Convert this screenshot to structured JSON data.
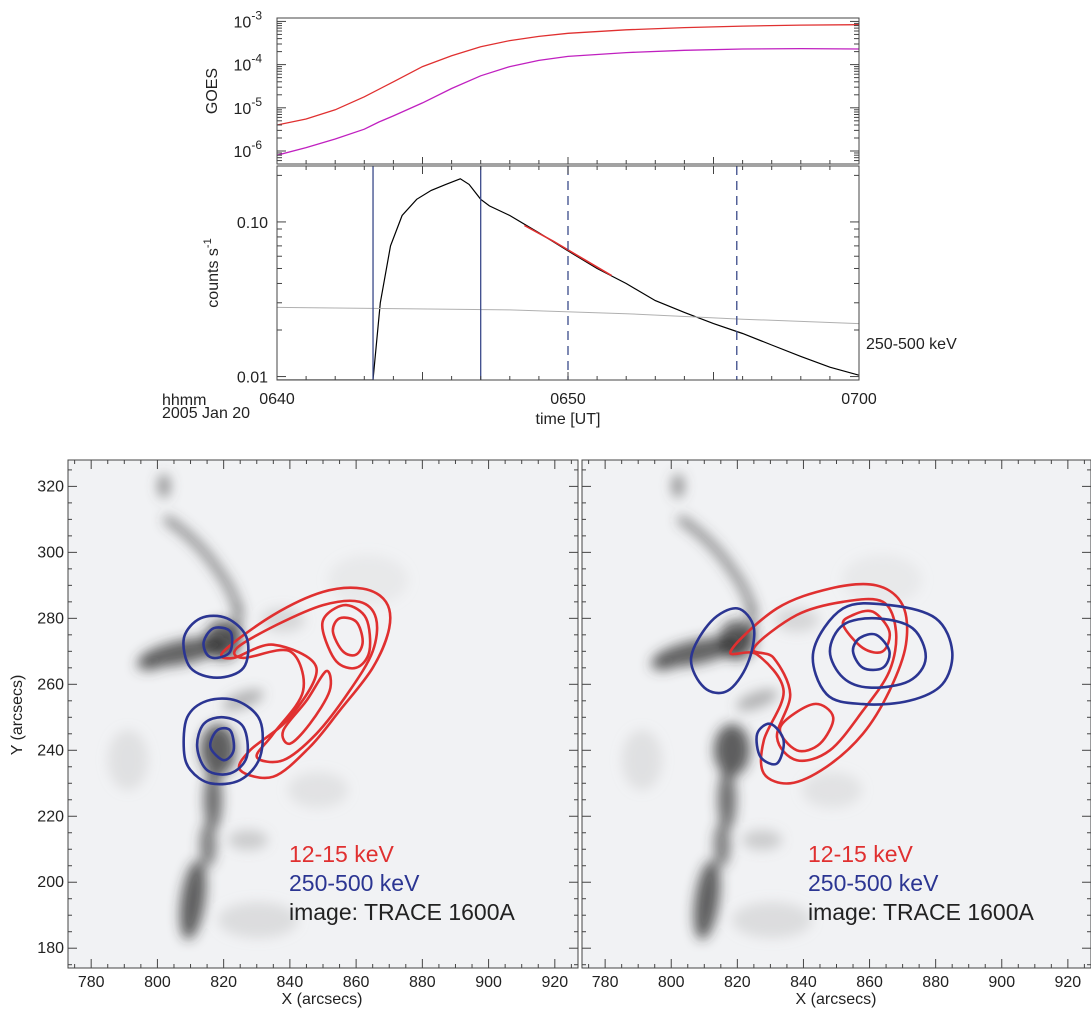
{
  "chart_data": [
    {
      "type": "line",
      "panel": "goes",
      "ylabel": "GOES",
      "yscale": "log",
      "ylim": [
        5e-07,
        0.0012
      ],
      "xlim": [
        40,
        60
      ],
      "yticks": [
        {
          "value": 0.001,
          "mant": "10",
          "exp": "-3"
        },
        {
          "value": 0.0001,
          "mant": "10",
          "exp": "-4"
        },
        {
          "value": 1e-05,
          "mant": "10",
          "exp": "-5"
        },
        {
          "value": 1e-06,
          "mant": "10",
          "exp": "-6"
        }
      ],
      "series": [
        {
          "color": "#e03030",
          "x": [
            40,
            41,
            42,
            43,
            44,
            45,
            46,
            47,
            48,
            49,
            50,
            52,
            54,
            56,
            58,
            60
          ],
          "y": [
            4e-06,
            5.5e-06,
            9e-06,
            1.8e-05,
            4e-05,
            9e-05,
            0.00016,
            0.00026,
            0.00036,
            0.00045,
            0.00053,
            0.00064,
            0.00072,
            0.00078,
            0.00082,
            0.00084
          ]
        },
        {
          "color": "#c020c0",
          "x": [
            40,
            41,
            42,
            43,
            43.5,
            44,
            45,
            46,
            47,
            48,
            49,
            50,
            52,
            54,
            56,
            58,
            60
          ],
          "y": [
            8e-07,
            1.2e-06,
            1.9e-06,
            3.2e-06,
            4.7e-06,
            6.5e-06,
            1.3e-05,
            2.8e-05,
            5.5e-05,
            9e-05,
            0.000125,
            0.000155,
            0.00019,
            0.000215,
            0.00023,
            0.000235,
            0.00023
          ]
        }
      ]
    },
    {
      "type": "line",
      "panel": "counts",
      "ylabel_main": "counts s",
      "ylabel_sup": "-1",
      "yscale": "log",
      "ylim": [
        0.0095,
        0.23
      ],
      "xlim": [
        40,
        60
      ],
      "yticks": [
        {
          "value": 0.1,
          "label": "0.10"
        },
        {
          "value": 0.01,
          "label": "0.01"
        }
      ],
      "xticks": [
        {
          "value": 40,
          "label": "0640"
        },
        {
          "value": 50,
          "label": "0650"
        },
        {
          "value": 60,
          "label": "0700"
        }
      ],
      "xlabel": "time [UT]",
      "time_format_label": "hhmm",
      "date_label": "2005 Jan 20",
      "band_label": "250-500 keV",
      "solid_lines_x": [
        43.3,
        47.0
      ],
      "dashed_lines_x": [
        50.0,
        55.8
      ],
      "line_color": "#3a4a8a",
      "series": [
        {
          "role": "signal",
          "color": "#000000",
          "x": [
            40,
            43.3,
            43.55,
            43.9,
            44.3,
            44.8,
            45.3,
            45.8,
            46.3,
            46.6,
            47.0,
            47.3,
            48,
            49,
            50,
            51,
            52,
            53,
            54,
            55,
            56,
            57,
            58,
            59,
            60
          ],
          "y": [
            0.0095,
            0.0095,
            0.03,
            0.07,
            0.11,
            0.14,
            0.16,
            0.175,
            0.19,
            0.175,
            0.14,
            0.127,
            0.11,
            0.085,
            0.065,
            0.05,
            0.04,
            0.031,
            0.026,
            0.022,
            0.019,
            0.016,
            0.0135,
            0.0115,
            0.0102
          ]
        },
        {
          "role": "fit",
          "color": "#e03030",
          "x": [
            48.5,
            49.5,
            50.5,
            51.5
          ],
          "y": [
            0.095,
            0.075,
            0.058,
            0.045
          ]
        },
        {
          "role": "background",
          "color": "#b0b0b0",
          "x": [
            40,
            44,
            48,
            52,
            56,
            60
          ],
          "y": [
            0.028,
            0.0275,
            0.027,
            0.0255,
            0.0235,
            0.022
          ]
        }
      ]
    },
    {
      "type": "contour",
      "panel": "map-left",
      "xlabel": "X (arcsecs)",
      "ylabel": "Y (arcsecs)",
      "xlim": [
        773,
        927
      ],
      "ylim": [
        174,
        328
      ],
      "xticks": [
        780,
        800,
        820,
        840,
        860,
        880,
        900,
        920
      ],
      "yticks": [
        180,
        200,
        220,
        240,
        260,
        280,
        300,
        320
      ],
      "legend": [
        {
          "text": "12-15 keV",
          "color": "#e03030"
        },
        {
          "text": "250-500 keV",
          "color": "#2b3592"
        },
        {
          "text": "image: TRACE 1600A",
          "color": "#222222"
        }
      ],
      "contours": [
        {
          "color": "#e03030",
          "points": [
            [
              820,
              270
            ],
            [
              835,
              281
            ],
            [
              850,
              288
            ],
            [
              862,
              289
            ],
            [
              869,
              285
            ],
            [
              870,
              277
            ],
            [
              865,
              265
            ],
            [
              855,
              252
            ],
            [
              846,
              241
            ],
            [
              835,
              232
            ],
            [
              825,
              234
            ],
            [
              828,
              240
            ],
            [
              840,
              250
            ],
            [
              848,
              265
            ],
            [
              835,
              272
            ],
            [
              823,
              268
            ]
          ]
        },
        {
          "color": "#e03030",
          "points": [
            [
              824,
              271
            ],
            [
              836,
              278
            ],
            [
              850,
              284
            ],
            [
              861,
              285
            ],
            [
              866,
              280
            ],
            [
              865,
              270
            ],
            [
              858,
              258
            ],
            [
              848,
              245
            ],
            [
              838,
              237
            ],
            [
              830,
              238
            ],
            [
              835,
              245
            ],
            [
              844,
              258
            ],
            [
              840,
              270
            ],
            [
              826,
              268
            ]
          ]
        },
        {
          "color": "#e03030",
          "points": [
            [
              850,
              276
            ],
            [
              854,
              267
            ],
            [
              860,
              265
            ],
            [
              864,
              270
            ],
            [
              863,
              280
            ],
            [
              857,
              284
            ],
            [
              851,
              281
            ]
          ]
        },
        {
          "color": "#e03030",
          "points": [
            [
              853,
              276
            ],
            [
              856,
              270
            ],
            [
              860,
              269
            ],
            [
              862,
              273
            ],
            [
              860,
              279
            ],
            [
              855,
              280
            ]
          ]
        },
        {
          "color": "#e03030",
          "points": [
            [
              838,
              246
            ],
            [
              845,
              255
            ],
            [
              851,
              264
            ],
            [
              852,
              258
            ],
            [
              846,
              248
            ],
            [
              840,
              242
            ]
          ]
        },
        {
          "color": "#2b3592",
          "points": [
            [
              808,
              274
            ],
            [
              813,
              280
            ],
            [
              821,
              280
            ],
            [
              827,
              274
            ],
            [
              826,
              265
            ],
            [
              818,
              262
            ],
            [
              810,
              265
            ]
          ]
        },
        {
          "color": "#2b3592",
          "points": [
            [
              814,
              273
            ],
            [
              817,
              277
            ],
            [
              822,
              276
            ],
            [
              822,
              270
            ],
            [
              818,
              268
            ],
            [
              815,
              269
            ]
          ]
        },
        {
          "color": "#2b3592",
          "points": [
            [
              808,
              240
            ],
            [
              809,
              250
            ],
            [
              815,
              255
            ],
            [
              824,
              255
            ],
            [
              831,
              249
            ],
            [
              831,
              238
            ],
            [
              825,
              231
            ],
            [
              816,
              230
            ],
            [
              810,
              234
            ]
          ]
        },
        {
          "color": "#2b3592",
          "points": [
            [
              812,
              241
            ],
            [
              814,
              248
            ],
            [
              820,
              250
            ],
            [
              826,
              247
            ],
            [
              827,
              238
            ],
            [
              822,
              233
            ],
            [
              815,
              234
            ]
          ]
        },
        {
          "color": "#2b3592",
          "points": [
            [
              816,
              241
            ],
            [
              818,
              246
            ],
            [
              822,
              246
            ],
            [
              823,
              240
            ],
            [
              820,
              237
            ]
          ]
        }
      ]
    },
    {
      "type": "contour",
      "panel": "map-right",
      "xlabel": "X (arcsecs)",
      "xlim": [
        773,
        927
      ],
      "ylim": [
        174,
        328
      ],
      "xticks": [
        780,
        800,
        820,
        840,
        860,
        880,
        900,
        920
      ],
      "yticks": [
        180,
        200,
        220,
        240,
        260,
        280,
        300,
        320
      ],
      "legend": [
        {
          "text": "12-15 keV",
          "color": "#e03030"
        },
        {
          "text": "250-500 keV",
          "color": "#2b3592"
        },
        {
          "text": "image: TRACE 1600A",
          "color": "#222222"
        }
      ],
      "contours": [
        {
          "color": "#e03030",
          "points": [
            [
              818,
              270
            ],
            [
              832,
              283
            ],
            [
              848,
              289
            ],
            [
              862,
              290
            ],
            [
              870,
              284
            ],
            [
              871,
              272
            ],
            [
              866,
              258
            ],
            [
              858,
              245
            ],
            [
              847,
              235
            ],
            [
              836,
              230
            ],
            [
              828,
              233
            ],
            [
              828,
              243
            ],
            [
              834,
              258
            ],
            [
              826,
              269
            ]
          ]
        },
        {
          "color": "#e03030",
          "points": [
            [
              825,
              271
            ],
            [
              838,
              281
            ],
            [
              852,
              285
            ],
            [
              864,
              285
            ],
            [
              868,
              276
            ],
            [
              866,
              264
            ],
            [
              858,
              252
            ],
            [
              848,
              240
            ],
            [
              838,
              237
            ],
            [
              832,
              244
            ],
            [
              836,
              257
            ],
            [
              831,
              268
            ]
          ]
        },
        {
          "color": "#e03030",
          "points": [
            [
              833,
              247
            ],
            [
              843,
              254
            ],
            [
              849,
              250
            ],
            [
              845,
              242
            ],
            [
              838,
              240
            ]
          ]
        },
        {
          "color": "#e03030",
          "points": [
            [
              852,
              278
            ],
            [
              858,
              271
            ],
            [
              864,
              270
            ],
            [
              866,
              276
            ],
            [
              861,
              282
            ],
            [
              855,
              281
            ]
          ]
        },
        {
          "color": "#2b3592",
          "points": [
            [
              843,
              270
            ],
            [
              847,
              257
            ],
            [
              858,
              254
            ],
            [
              872,
              255
            ],
            [
              882,
              260
            ],
            [
              885,
              270
            ],
            [
              880,
              280
            ],
            [
              866,
              284
            ],
            [
              852,
              283
            ]
          ]
        },
        {
          "color": "#2b3592",
          "points": [
            [
              848,
              270
            ],
            [
              852,
              262
            ],
            [
              860,
              259
            ],
            [
              872,
              261
            ],
            [
              877,
              268
            ],
            [
              873,
              277
            ],
            [
              862,
              280
            ],
            [
              852,
              278
            ]
          ]
        },
        {
          "color": "#2b3592",
          "points": [
            [
              855,
              270
            ],
            [
              858,
              265
            ],
            [
              864,
              265
            ],
            [
              866,
              270
            ],
            [
              862,
              275
            ],
            [
              857,
              274
            ]
          ]
        },
        {
          "color": "#2b3592",
          "points": [
            [
              806,
              268
            ],
            [
              812,
              279
            ],
            [
              820,
              283
            ],
            [
              825,
              277
            ],
            [
              823,
              266
            ],
            [
              817,
              258
            ],
            [
              810,
              259
            ]
          ]
        },
        {
          "color": "#2b3592",
          "points": [
            [
              827,
              238
            ],
            [
              826,
              245
            ],
            [
              830,
              248
            ],
            [
              834,
              243
            ],
            [
              832,
              236
            ]
          ]
        }
      ]
    }
  ]
}
